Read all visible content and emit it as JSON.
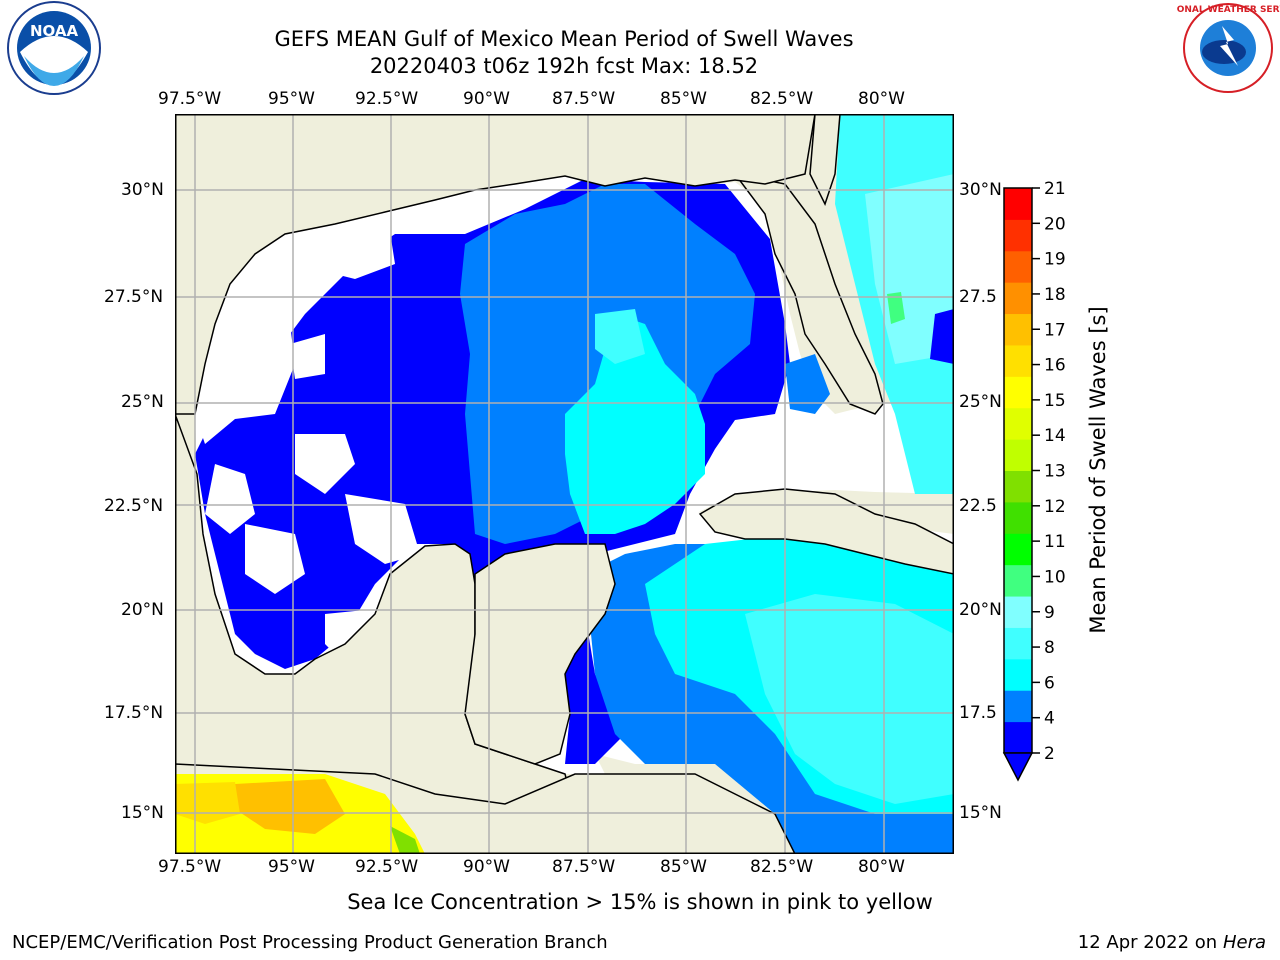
{
  "title_line1": "GEFS MEAN Gulf of Mexico Mean Period of Swell Waves",
  "title_line2": "20220403 t06z 192h fcst   Max: 18.52",
  "lon_ticks": [
    "97.5°W",
    "95°W",
    "92.5°W",
    "90°W",
    "87.5°W",
    "85°W",
    "82.5°W",
    "80°W"
  ],
  "lat_ticks_left": [
    "30°N",
    "27.5°N",
    "25°N",
    "22.5°N",
    "20°N",
    "17.5°N",
    "15°N"
  ],
  "lat_ticks_right": [
    "30°N",
    "27.5",
    "25°N",
    "22.5",
    "20°N",
    "17.5",
    "15°N"
  ],
  "colorbar": {
    "label": "Mean Period of Swell Waves [s]",
    "ticks": [
      "21",
      "20",
      "19",
      "18",
      "17",
      "16",
      "15",
      "14",
      "13",
      "12",
      "11",
      "10",
      "9",
      "8",
      "6",
      "4",
      "2"
    ],
    "colors": [
      "#0000ff",
      "#0080ff",
      "#00ffff",
      "#40ffff",
      "#80ffff",
      "#40ff80",
      "#00ff00",
      "#40e000",
      "#80e000",
      "#c0ff00",
      "#e0ff00",
      "#ffff00",
      "#ffe000",
      "#ffc000",
      "#ff9000",
      "#ff6000",
      "#ff3000",
      "#ff0000"
    ]
  },
  "subtitle": "Sea Ice Concentration > 15% is shown in pink to yellow",
  "footer_left": "NCEP/EMC/Verification Post Processing Product Generation Branch",
  "footer_right_date": "12 Apr 2022 on ",
  "footer_right_host": "Hera",
  "logos": {
    "left": "noaa-logo",
    "right": "nws-logo",
    "left_text": "NOAA",
    "right_text": "NATIONAL WEATHER SERVICE"
  }
}
